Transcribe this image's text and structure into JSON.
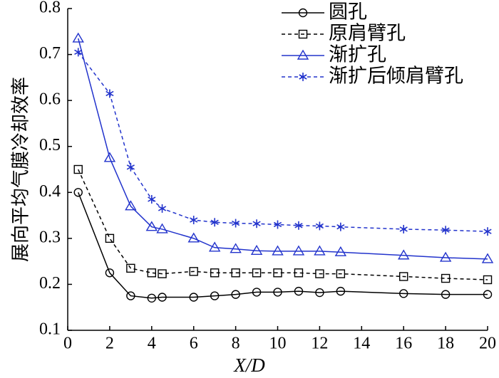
{
  "chart_data": {
    "type": "line",
    "x_label": "X/D",
    "y_label": "展向平均气膜冷却效率",
    "x": [
      0.5,
      2,
      3,
      4,
      4.5,
      6,
      7,
      8,
      9,
      10,
      11,
      12,
      13,
      16,
      18,
      20
    ],
    "xlim": [
      0,
      20
    ],
    "xticks": [
      0,
      2,
      4,
      6,
      8,
      10,
      12,
      14,
      16,
      18,
      20
    ],
    "ylim": [
      0.1,
      0.8
    ],
    "yticks": [
      0.1,
      0.2,
      0.3,
      0.4,
      0.5,
      0.6,
      0.7,
      0.8
    ],
    "legend": "upper right",
    "series": [
      {
        "name": "圆孔",
        "color": "#000000",
        "dash": "solid",
        "marker": "circle",
        "values": [
          0.4,
          0.225,
          0.175,
          0.17,
          0.172,
          0.172,
          0.175,
          0.178,
          0.183,
          0.183,
          0.185,
          0.182,
          0.185,
          0.18,
          0.178,
          0.178
        ]
      },
      {
        "name": "原肩臂孔",
        "color": "#000000",
        "dash": "dashed",
        "marker": "square",
        "values": [
          0.45,
          0.3,
          0.235,
          0.225,
          0.223,
          0.228,
          0.225,
          0.225,
          0.225,
          0.225,
          0.225,
          0.223,
          0.223,
          0.217,
          0.213,
          0.21
        ]
      },
      {
        "name": "渐扩孔",
        "color": "#2233cc",
        "dash": "solid",
        "marker": "triangle",
        "values": [
          0.735,
          0.475,
          0.37,
          0.325,
          0.32,
          0.3,
          0.28,
          0.277,
          0.273,
          0.272,
          0.272,
          0.272,
          0.27,
          0.263,
          0.258,
          0.255
        ]
      },
      {
        "name": "渐扩后倾肩臂孔",
        "color": "#2233cc",
        "dash": "dashed",
        "marker": "star",
        "values": [
          0.705,
          0.615,
          0.455,
          0.385,
          0.365,
          0.34,
          0.335,
          0.333,
          0.332,
          0.33,
          0.328,
          0.327,
          0.325,
          0.32,
          0.318,
          0.315
        ]
      }
    ]
  }
}
